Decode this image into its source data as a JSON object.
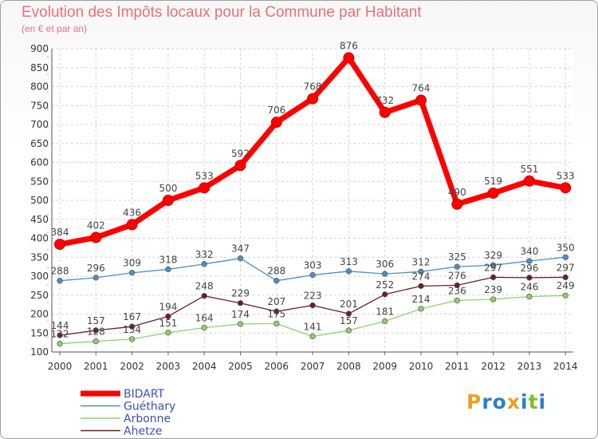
{
  "title": "Evolution des Impôts locaux pour la Commune par Habitant",
  "subtitle": "(en € et par an)",
  "logo": {
    "letters": [
      "P",
      "r",
      "o",
      "x",
      "i",
      "t",
      "i"
    ],
    "colors": [
      "#e8a020",
      "#2a7fc9",
      "#2a7fc9",
      "#e8a020",
      "#2a7fc9",
      "#7cbf2a",
      "#2a7fc9"
    ]
  },
  "chart_data": {
    "type": "line",
    "title": "Evolution des Impôts locaux pour la Commune par Habitant",
    "subtitle": "(en € et par an)",
    "xlabel": "",
    "ylabel": "",
    "x": [
      "2000",
      "2001",
      "2002",
      "2003",
      "2004",
      "2005",
      "2006",
      "2007",
      "2008",
      "2009",
      "2010",
      "2011",
      "2012",
      "2013",
      "2014"
    ],
    "ylim": [
      100,
      900
    ],
    "yticks": [
      100,
      150,
      200,
      250,
      300,
      350,
      400,
      450,
      500,
      550,
      600,
      650,
      700,
      750,
      800,
      850,
      900
    ],
    "grid": true,
    "legend_position": "bottom-left",
    "series": [
      {
        "name": "BIDART",
        "color": "#ff0000",
        "style": "thick",
        "values": [
          384,
          402,
          436,
          500,
          533,
          592,
          706,
          768,
          876,
          732,
          764,
          490,
          519,
          551,
          533
        ]
      },
      {
        "name": "Guéthary",
        "color": "#4a8fcc",
        "style": "thin",
        "values": [
          288,
          296,
          309,
          318,
          332,
          347,
          288,
          303,
          313,
          306,
          312,
          325,
          329,
          340,
          350
        ]
      },
      {
        "name": "Arbonne",
        "color": "#8fd16a",
        "style": "thin",
        "values": [
          122,
          128,
          134,
          151,
          164,
          174,
          175,
          141,
          157,
          181,
          214,
          236,
          239,
          246,
          249
        ]
      },
      {
        "name": "Ahetze",
        "color": "#6b1f24",
        "style": "thin",
        "values": [
          144,
          157,
          167,
          194,
          248,
          229,
          207,
          223,
          201,
          252,
          274,
          276,
          297,
          296,
          297
        ]
      }
    ]
  }
}
